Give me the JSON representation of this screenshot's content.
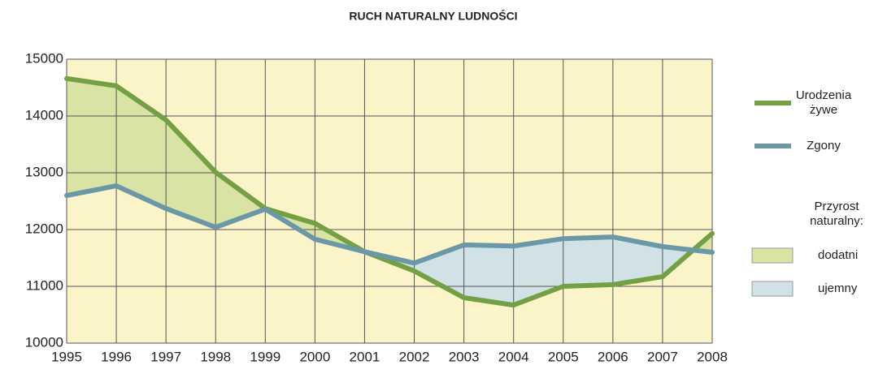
{
  "chart_data": {
    "type": "line",
    "title": "RUCH NATURALNY LUDNOŚCI",
    "x": [
      1995,
      1996,
      1997,
      1998,
      1999,
      2000,
      2001,
      2002,
      2003,
      2004,
      2005,
      2006,
      2007,
      2008
    ],
    "xlim": [
      1995,
      2008
    ],
    "series": [
      {
        "name": "Urodzenia żywe",
        "color": "#72a043",
        "values": [
          14660,
          14530,
          13930,
          13010,
          12370,
          12110,
          11610,
          11270,
          10800,
          10670,
          11000,
          11030,
          11170,
          11930
        ]
      },
      {
        "name": "Zgony",
        "color": "#6b98a6",
        "values": [
          12600,
          12770,
          12370,
          12040,
          12360,
          11830,
          11610,
          11410,
          11730,
          11710,
          11840,
          11870,
          11700,
          11600
        ]
      }
    ],
    "fill_legend_title": "Przyrost naturalny:",
    "fills": [
      {
        "name": "dodatni",
        "color": "#d8e3a4"
      },
      {
        "name": "ujemny",
        "color": "#d0e2e6"
      }
    ],
    "ylim": [
      10000,
      15000
    ],
    "yticks": [
      10000,
      11000,
      12000,
      13000,
      14000,
      15000
    ],
    "grid": true,
    "background": "#fbf4c9"
  }
}
